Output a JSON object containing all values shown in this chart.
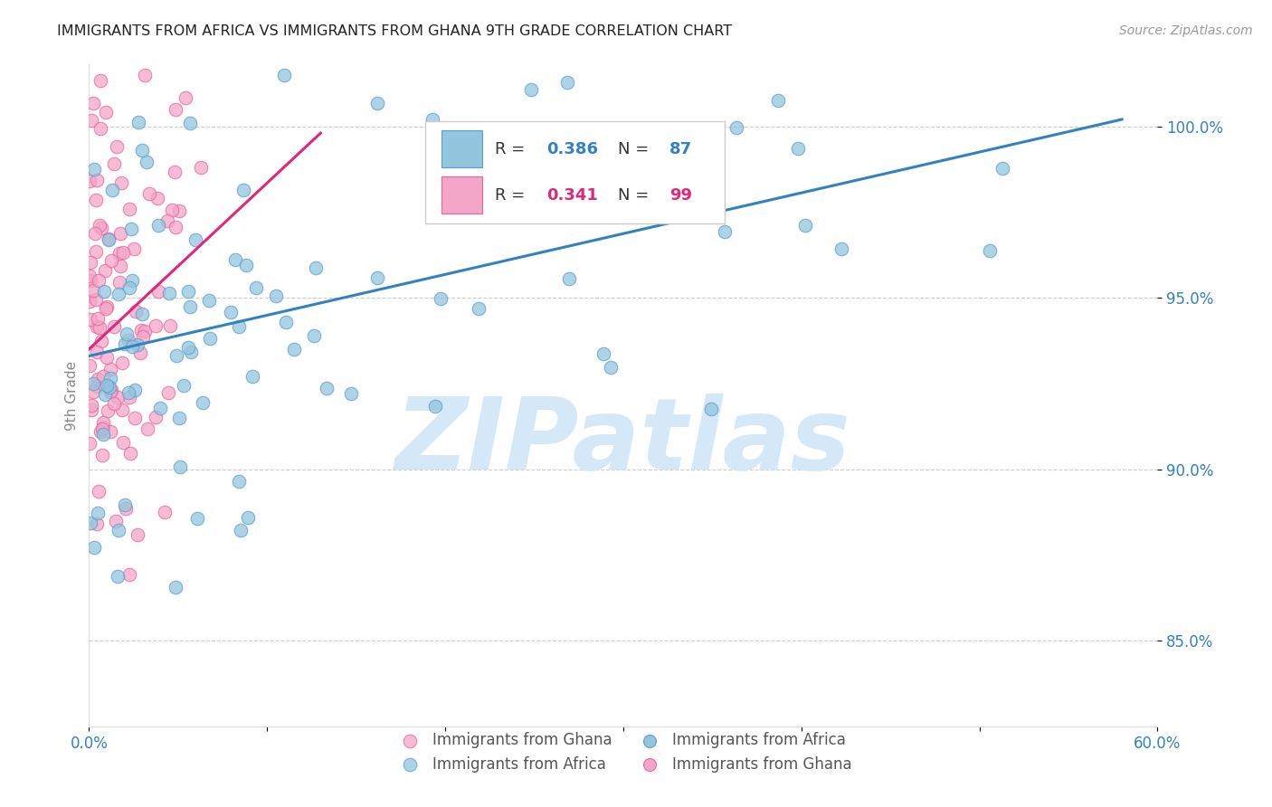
{
  "title": "IMMIGRANTS FROM AFRICA VS IMMIGRANTS FROM GHANA 9TH GRADE CORRELATION CHART",
  "source": "Source: ZipAtlas.com",
  "ylabel": "9th Grade",
  "yticks": [
    85.0,
    90.0,
    95.0,
    100.0
  ],
  "ytick_labels": [
    "85.0%",
    "90.0%",
    "95.0%",
    "100.0%"
  ],
  "xlim": [
    0.0,
    60.0
  ],
  "ylim": [
    82.5,
    101.8
  ],
  "legend_africa": "Immigrants from Africa",
  "legend_ghana": "Immigrants from Ghana",
  "R_africa": "0.386",
  "N_africa": "87",
  "R_ghana": "0.341",
  "N_ghana": "99",
  "africa_color": "#92c5de",
  "ghana_color": "#f4a6c8",
  "africa_edge_color": "#5b9ec9",
  "ghana_edge_color": "#e8649a",
  "africa_line_color": "#3182bd",
  "ghana_line_color": "#e0287a",
  "watermark_text": "ZIPatlas",
  "watermark_color": "#d4e8f7",
  "background_color": "#ffffff",
  "grid_color": "#cccccc",
  "title_color": "#222222",
  "source_color": "#999999",
  "axis_label_color": "#3182bd",
  "ylabel_color": "#888888",
  "legend_text_color": "#333333",
  "africa_line_x": [
    0.0,
    58.0
  ],
  "africa_line_y": [
    93.3,
    100.2
  ],
  "ghana_line_x": [
    0.0,
    13.0
  ],
  "ghana_line_y": [
    93.5,
    99.8
  ]
}
